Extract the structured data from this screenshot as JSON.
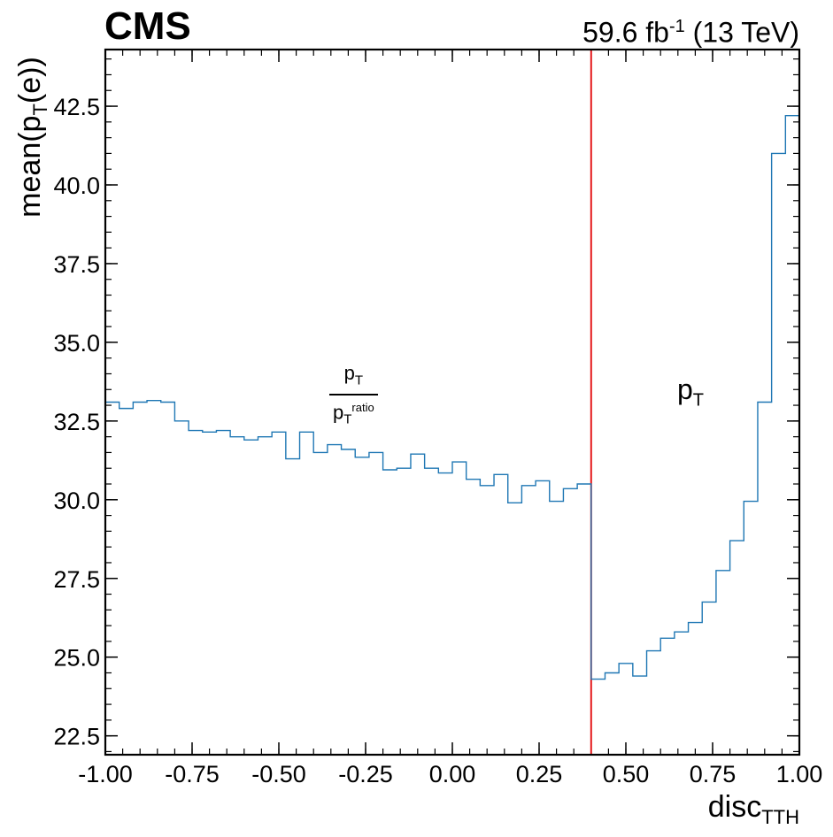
{
  "experiment": "CMS",
  "lumi": {
    "value": "59.6 fb",
    "exponent": "-1",
    "energy": " (13 TeV)"
  },
  "chart_data": {
    "type": "step",
    "xlabel": {
      "main": "disc",
      "sub": "TTH"
    },
    "ylabel": {
      "main": "mean(p",
      "sub": "T",
      "tail": "(e))"
    },
    "xlim": [
      -1.0,
      1.0
    ],
    "ylim": [
      21.9,
      44.3
    ],
    "x_ticks": [
      -1.0,
      -0.75,
      -0.5,
      -0.25,
      0.0,
      0.25,
      0.5,
      0.75,
      1.0
    ],
    "x_tick_labels": [
      "-1.00",
      "-0.75",
      "-0.50",
      "-0.25",
      "0.00",
      "0.25",
      "0.50",
      "0.75",
      "1.00"
    ],
    "y_ticks": [
      22.5,
      25.0,
      27.5,
      30.0,
      32.5,
      35.0,
      37.5,
      40.0,
      42.5
    ],
    "y_tick_labels": [
      "22.5",
      "25.0",
      "27.5",
      "30.0",
      "32.5",
      "35.0",
      "37.5",
      "40.0",
      "42.5"
    ],
    "bin_edges": [
      -1.0,
      -0.96,
      -0.92,
      -0.88,
      -0.84,
      -0.8,
      -0.76,
      -0.72,
      -0.68,
      -0.64,
      -0.6,
      -0.56,
      -0.52,
      -0.48,
      -0.44,
      -0.4,
      -0.36,
      -0.32,
      -0.28,
      -0.24,
      -0.2,
      -0.16,
      -0.12,
      -0.08,
      -0.04,
      0.0,
      0.04,
      0.08,
      0.12,
      0.16,
      0.2,
      0.24,
      0.28,
      0.32,
      0.36,
      0.4,
      0.44,
      0.48,
      0.52,
      0.56,
      0.6,
      0.64,
      0.68,
      0.72,
      0.76,
      0.8,
      0.84,
      0.88,
      0.92,
      0.96,
      1.0
    ],
    "values": [
      33.1,
      32.9,
      33.1,
      33.15,
      33.1,
      32.5,
      32.2,
      32.15,
      32.2,
      32.0,
      31.9,
      32.0,
      32.15,
      31.3,
      32.15,
      31.5,
      31.75,
      31.6,
      31.35,
      31.5,
      30.95,
      31.0,
      31.45,
      31.0,
      30.85,
      31.2,
      30.65,
      30.45,
      30.8,
      29.9,
      30.45,
      30.6,
      29.95,
      30.35,
      30.5,
      24.3,
      24.5,
      24.8,
      24.4,
      25.2,
      25.6,
      25.8,
      26.1,
      26.75,
      27.75,
      28.7,
      29.95,
      33.1,
      41.0,
      42.2
    ],
    "line_color": "#1f77b4",
    "cut_line": {
      "x": 0.4,
      "color": "#e41a1c"
    },
    "annotations": {
      "left_num_main": "p",
      "left_num_sub": "T",
      "left_den_main": "p",
      "left_den_sub": "T",
      "left_den_sup": "ratio",
      "right_main": "p",
      "right_sub": "T"
    }
  }
}
